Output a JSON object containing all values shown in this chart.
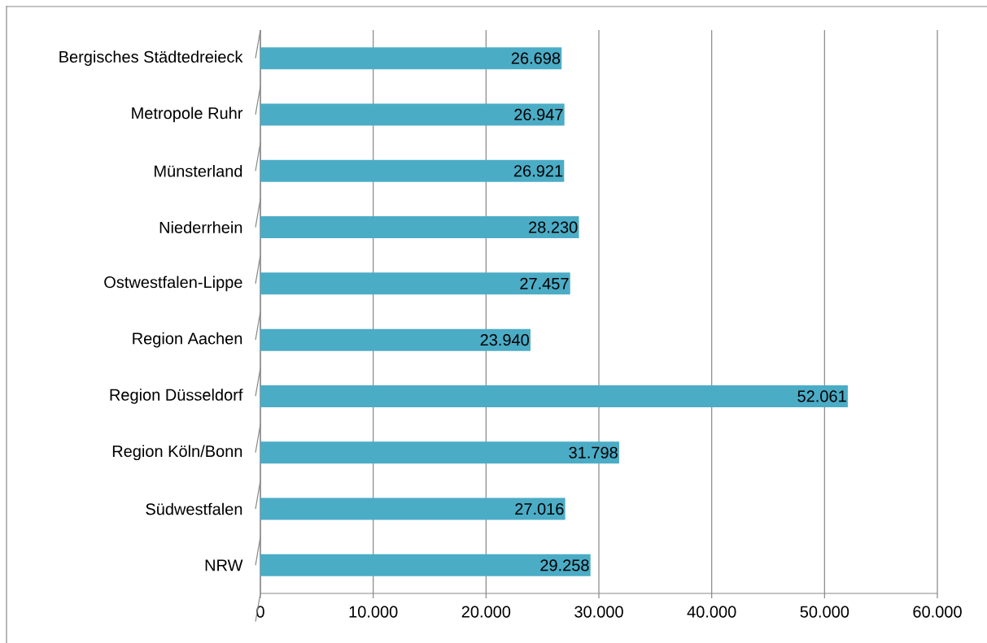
{
  "chart_data": {
    "type": "bar",
    "orientation": "horizontal",
    "categories": [
      "Bergisches Städtedreieck",
      "Metropole Ruhr",
      "Münsterland",
      "Niederrhein",
      "Ostwestfalen-Lippe",
      "Region Aachen",
      "Region Düsseldorf",
      "Region Köln/Bonn",
      "Südwestfalen",
      "NRW"
    ],
    "values": [
      26698,
      26947,
      26921,
      28230,
      27457,
      23940,
      52061,
      31798,
      27016,
      29258
    ],
    "value_labels": [
      "26.698",
      "26.947",
      "26.921",
      "28.230",
      "27.457",
      "23.940",
      "52.061",
      "31.798",
      "27.016",
      "29.258"
    ],
    "color": "#4bacc6",
    "xlim": [
      0,
      60000
    ],
    "xticks": [
      0,
      {
        "value": 10000,
        "label": "10.000"
      },
      {
        "value": 20000,
        "label": "20.000"
      },
      {
        "value": 30000,
        "label": "30.000"
      },
      {
        "value": 40000,
        "label": "40.000"
      },
      {
        "value": 50000,
        "label": "50.000"
      },
      {
        "value": 60000,
        "label": "60.000"
      }
    ],
    "grid": "x"
  }
}
